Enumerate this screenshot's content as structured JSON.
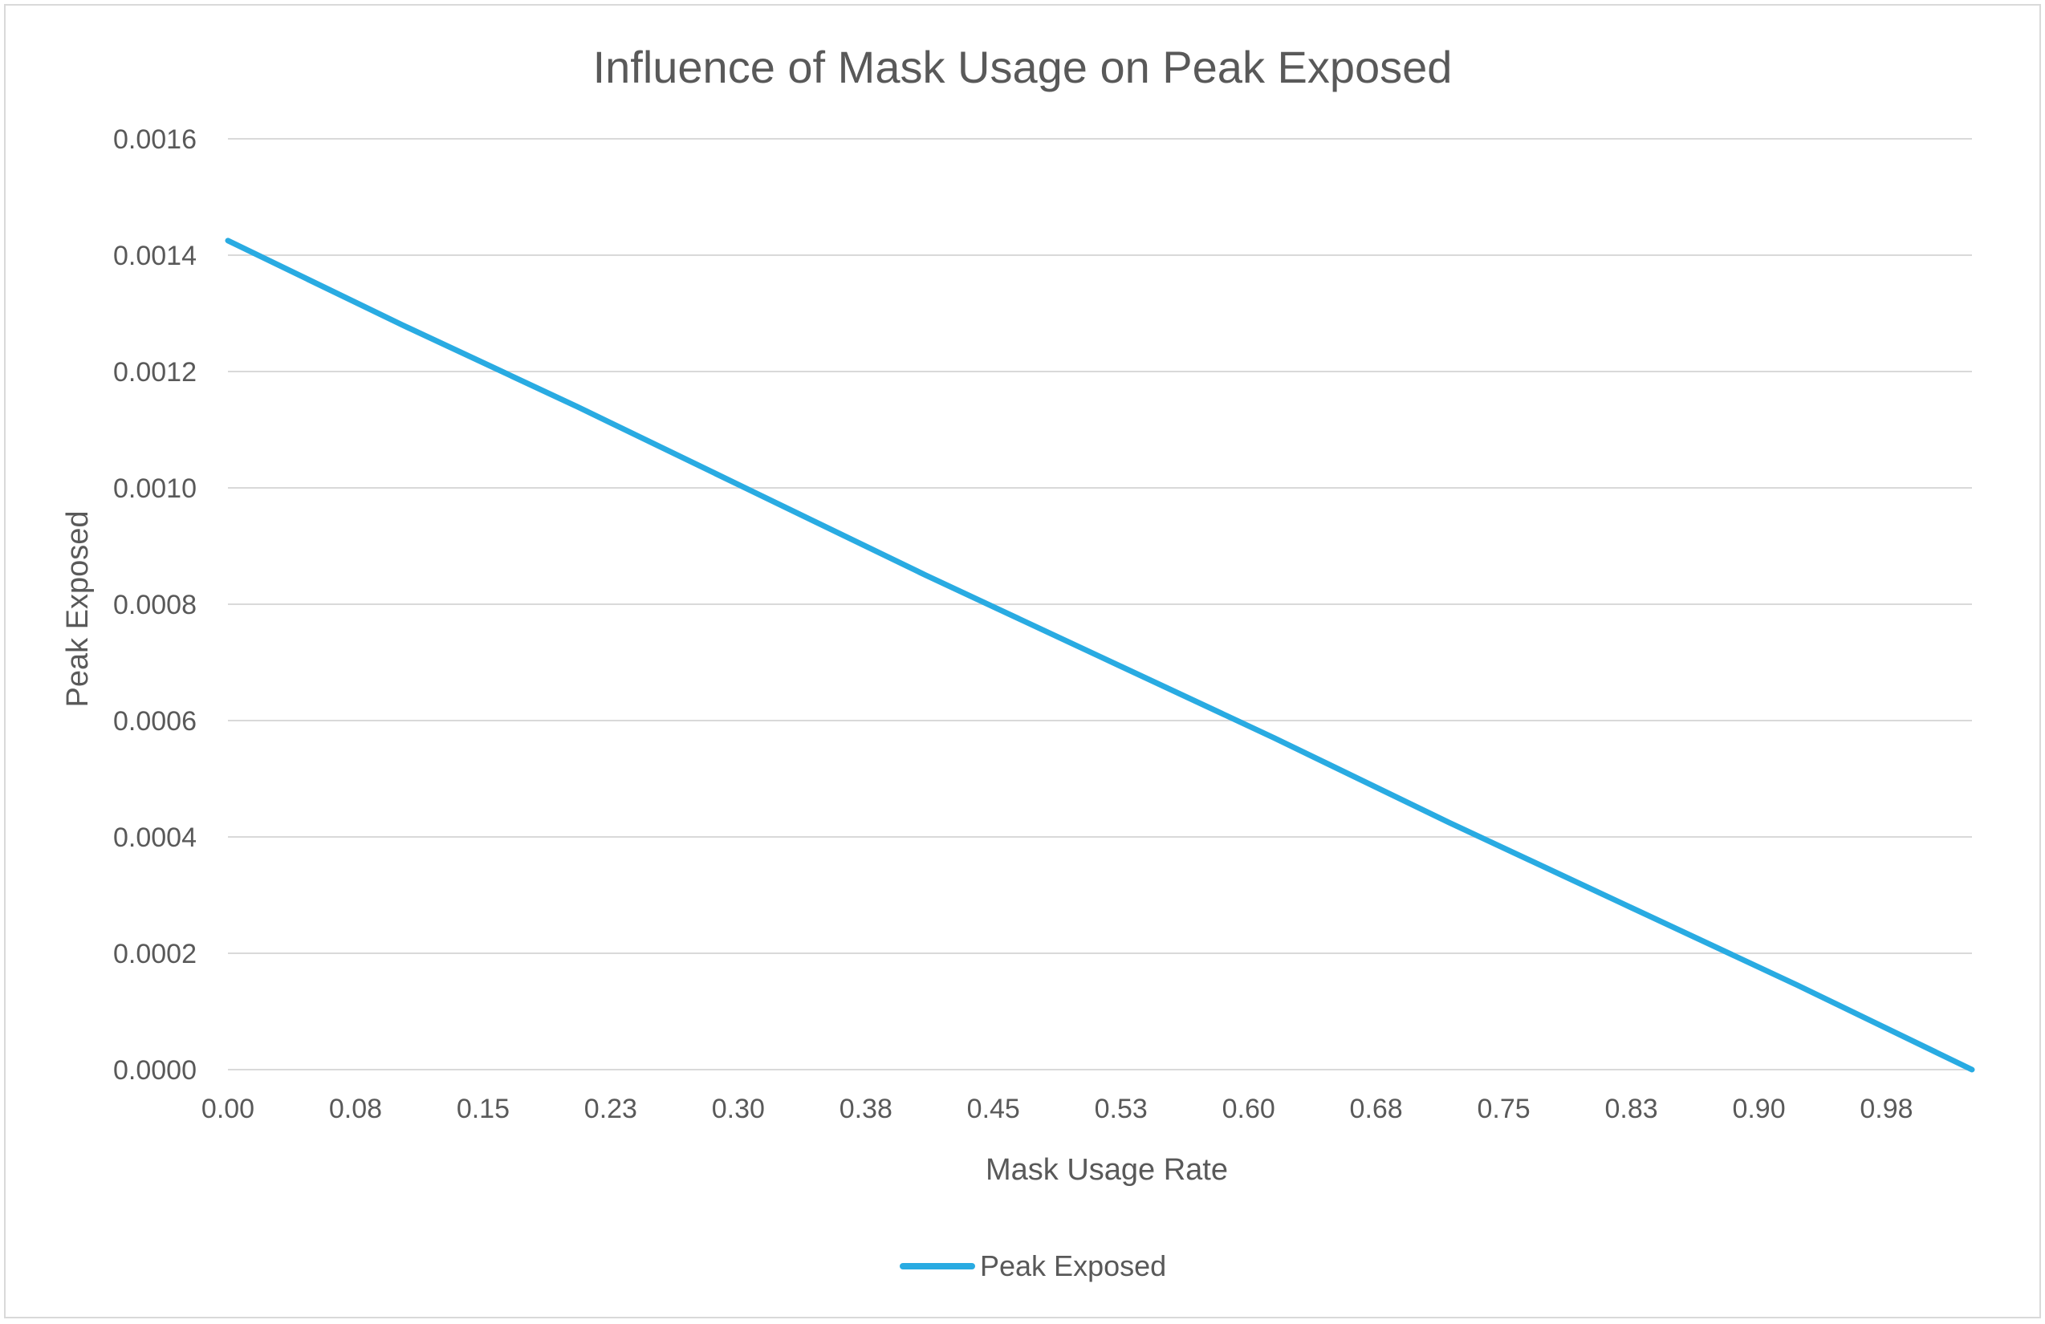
{
  "chart_data": {
    "type": "line",
    "title": "Influence of Mask Usage on Peak Exposed",
    "xlabel": "Mask Usage Rate",
    "ylabel": "Peak Exposed",
    "x_tick_labels": [
      "0.00",
      "0.08",
      "0.15",
      "0.23",
      "0.30",
      "0.38",
      "0.45",
      "0.53",
      "0.60",
      "0.68",
      "0.75",
      "0.83",
      "0.90",
      "0.98"
    ],
    "y_tick_labels": [
      "0.0000",
      "0.0002",
      "0.0004",
      "0.0006",
      "0.0008",
      "0.0010",
      "0.0012",
      "0.0014",
      "0.0016"
    ],
    "xlim": [
      0.0,
      1.0
    ],
    "ylim": [
      0.0,
      0.0016
    ],
    "grid": true,
    "legend_position": "bottom",
    "series": [
      {
        "name": "Peak Exposed",
        "color": "#29ABE2",
        "x": [
          0.0,
          0.1,
          0.2,
          0.3,
          0.4,
          0.5,
          0.6,
          0.7,
          0.8,
          0.9,
          1.0
        ],
        "y": [
          0.001425,
          0.00128,
          0.00114,
          0.000995,
          0.00085,
          0.00071,
          0.00057,
          0.000425,
          0.000285,
          0.000145,
          0.0
        ]
      }
    ]
  }
}
